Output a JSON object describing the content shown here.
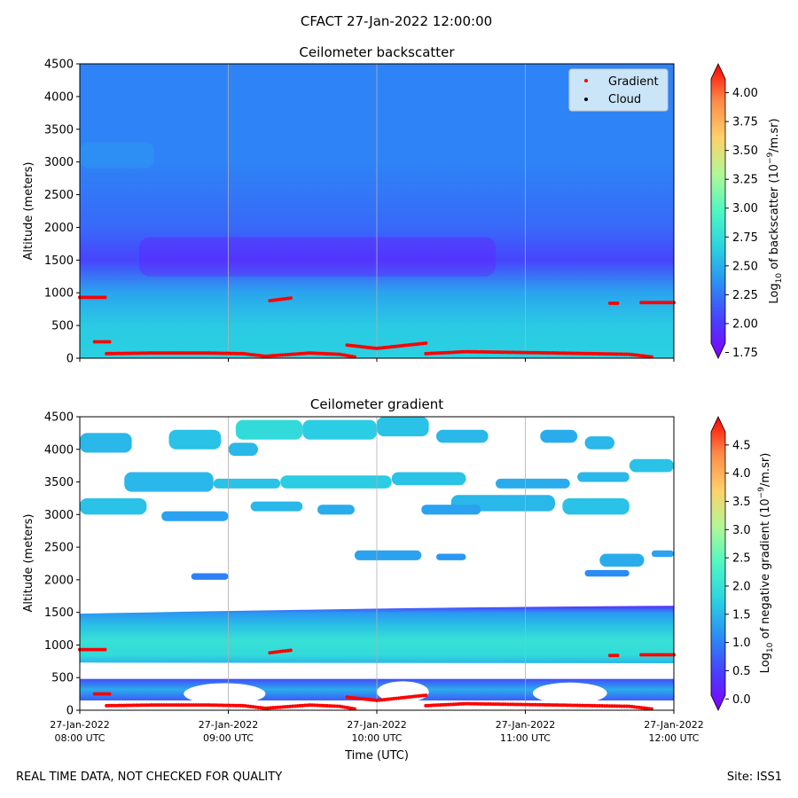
{
  "suptitle": "CFACT 27-Jan-2022 12:00:00",
  "footer": {
    "left": "REAL TIME DATA, NOT CHECKED FOR QUALITY",
    "right": "Site: ISS1"
  },
  "colors": {
    "gradient_marker": "#ff0000",
    "cloud_marker": "#000000",
    "colormap": [
      "#8000ff",
      "#4b3cfe",
      "#2a8cf5",
      "#2ad2e1",
      "#4ef7c3",
      "#b1f795",
      "#ffd169",
      "#ff8a48",
      "#ff0000"
    ]
  },
  "chart_data": [
    {
      "type": "heatmap",
      "title": "Ceilometer backscatter",
      "xlabel": "",
      "ylabel": "Altitude (meters)",
      "xlim_hours_utc": [
        8.0,
        12.0
      ],
      "ylim": [
        0,
        4500
      ],
      "y_ticks": [
        "0",
        "500",
        "1000",
        "1500",
        "2000",
        "2500",
        "3000",
        "3500",
        "4000",
        "4500"
      ],
      "grid": "vertical lines at hourly ticks",
      "colorbar": {
        "label_prefix": "Log",
        "label_sub": "10",
        "label_mid": " of backscatter (10",
        "label_sup": "−9",
        "label_suffix": "/m.sr)",
        "range": [
          1.7,
          4.25
        ],
        "ticks": [
          "1.75",
          "2.00",
          "2.25",
          "2.50",
          "2.75",
          "3.00",
          "3.25",
          "3.50",
          "3.75",
          "4.00"
        ]
      },
      "legend": {
        "location": "top-right",
        "entries": [
          {
            "label": "Gradient",
            "color": "#ff0000"
          },
          {
            "label": "Cloud",
            "color": "#000000"
          }
        ]
      },
      "vertical_profile_approx": [
        {
          "altitude_m": 0,
          "log10_backscatter": 2.65
        },
        {
          "altitude_m": 500,
          "log10_backscatter": 2.62
        },
        {
          "altitude_m": 1000,
          "log10_backscatter": 2.45
        },
        {
          "altitude_m": 1500,
          "log10_backscatter": 2.05
        },
        {
          "altitude_m": 2000,
          "log10_backscatter": 2.2
        },
        {
          "altitude_m": 3000,
          "log10_backscatter": 2.3
        },
        {
          "altitude_m": 4500,
          "log10_backscatter": 2.3
        }
      ]
    },
    {
      "type": "heatmap",
      "title": "Ceilometer gradient",
      "xlabel": "Time (UTC)",
      "ylabel": "Altitude (meters)",
      "xlim_hours_utc": [
        8.0,
        12.0
      ],
      "ylim": [
        0,
        4500
      ],
      "y_ticks": [
        "0",
        "500",
        "1000",
        "1500",
        "2000",
        "2500",
        "3000",
        "3500",
        "4000",
        "4500"
      ],
      "x_ticks": [
        {
          "hour": 8,
          "line1": "27-Jan-2022",
          "line2": "08:00 UTC"
        },
        {
          "hour": 9,
          "line1": "27-Jan-2022",
          "line2": "09:00 UTC"
        },
        {
          "hour": 10,
          "line1": "27-Jan-2022",
          "line2": "10:00 UTC"
        },
        {
          "hour": 11,
          "line1": "27-Jan-2022",
          "line2": "11:00 UTC"
        },
        {
          "hour": 12,
          "line1": "27-Jan-2022",
          "line2": "12:00 UTC"
        }
      ],
      "colorbar": {
        "label_prefix": "Log",
        "label_sub": "10",
        "label_mid": " of negative gradient (10",
        "label_sup": "−9",
        "label_suffix": "/m.sr)",
        "range": [
          -0.2,
          5.0
        ],
        "ticks": [
          "0.0",
          "0.5",
          "1.0",
          "1.5",
          "2.0",
          "2.5",
          "3.0",
          "3.5",
          "4.0",
          "4.5"
        ]
      },
      "bands": [
        {
          "description": "main boundary layer band",
          "bottom_m_at_8h": 730,
          "bottom_m_at_12h": 720,
          "top_m_at_8h": 1480,
          "top_m_at_12h": 1600,
          "core_log10": 2.0
        },
        {
          "description": "lower band",
          "bottom_m": 150,
          "top_m": 480,
          "log10": 1.4
        },
        {
          "description": "scattered patches 2000-4500 m",
          "log10": 1.5
        }
      ]
    }
  ],
  "layer_series": {
    "unit_x": "hour UTC",
    "unit_y": "m",
    "segments": [
      {
        "x": [
          8.0,
          8.17
        ],
        "y": [
          930,
          930
        ]
      },
      {
        "x": [
          8.1,
          8.2
        ],
        "y": [
          250,
          250
        ]
      },
      {
        "x": [
          8.18,
          8.5,
          8.85,
          9.1,
          9.25,
          9.55,
          9.75,
          9.85
        ],
        "y": [
          70,
          80,
          80,
          70,
          30,
          80,
          60,
          20
        ]
      },
      {
        "x": [
          9.28,
          9.42
        ],
        "y": [
          880,
          920
        ]
      },
      {
        "x": [
          9.8,
          10.0,
          10.33
        ],
        "y": [
          200,
          150,
          230
        ]
      },
      {
        "x": [
          10.33,
          10.6,
          11.2,
          11.7,
          11.85
        ],
        "y": [
          70,
          100,
          80,
          60,
          20
        ]
      },
      {
        "x": [
          11.57,
          11.62
        ],
        "y": [
          840,
          840
        ]
      },
      {
        "x": [
          11.78,
          12.0
        ],
        "y": [
          850,
          850
        ]
      }
    ]
  }
}
